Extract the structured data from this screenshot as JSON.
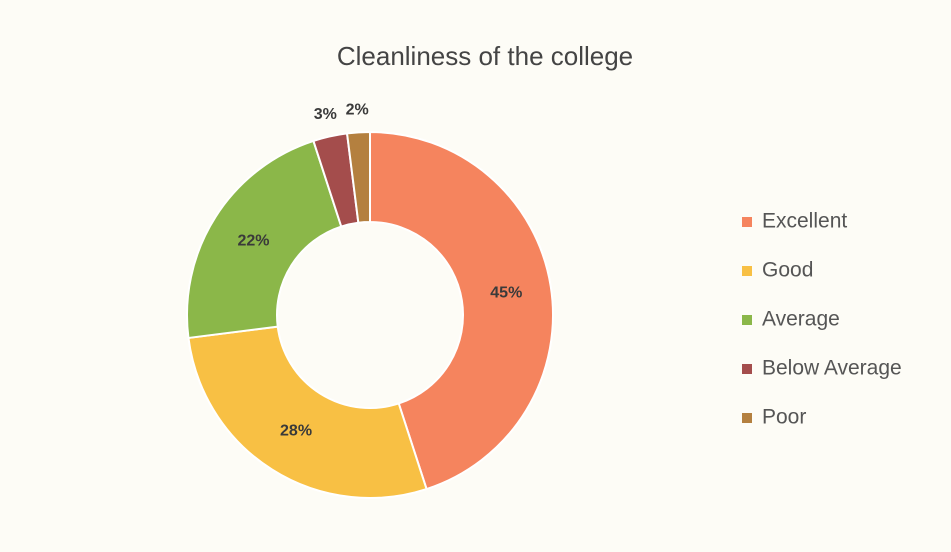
{
  "chart_data": {
    "type": "donut",
    "title": "Cleanliness of the college",
    "categories": [
      "Excellent",
      "Good",
      "Average",
      "Below Average",
      "Poor"
    ],
    "values": [
      45,
      28,
      22,
      3,
      2
    ],
    "value_labels": [
      "45%",
      "28%",
      "22%",
      "3%",
      "2%"
    ],
    "colors": [
      "#f5845e",
      "#f8c044",
      "#8bb749",
      "#a44d4c",
      "#b4803f"
    ],
    "legend": "right"
  }
}
